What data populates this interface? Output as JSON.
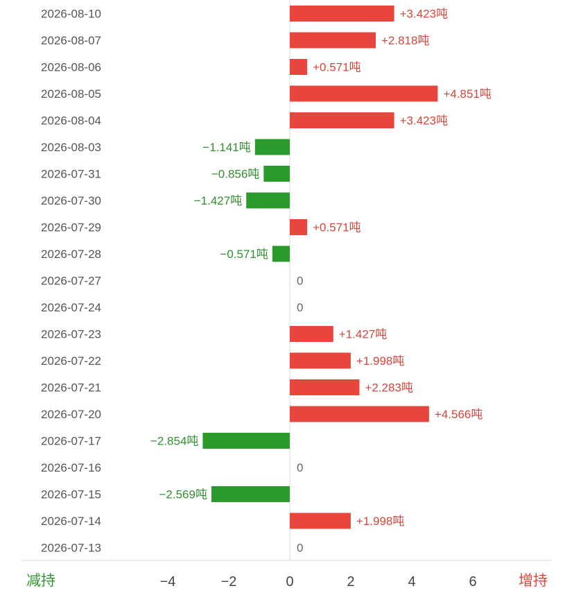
{
  "chart_data": {
    "type": "bar",
    "orientation": "horizontal",
    "categories": [
      "2026-08-10",
      "2026-08-07",
      "2026-08-06",
      "2026-08-05",
      "2026-08-04",
      "2026-08-03",
      "2026-07-31",
      "2026-07-30",
      "2026-07-29",
      "2026-07-28",
      "2026-07-27",
      "2026-07-24",
      "2026-07-23",
      "2026-07-22",
      "2026-07-21",
      "2026-07-20",
      "2026-07-17",
      "2026-07-16",
      "2026-07-15",
      "2026-07-14",
      "2026-07-13"
    ],
    "values": [
      3.423,
      2.818,
      0.571,
      4.851,
      3.423,
      -1.141,
      -0.856,
      -1.427,
      0.571,
      -0.571,
      0,
      0,
      1.427,
      1.998,
      2.283,
      4.566,
      -2.854,
      0,
      -2.569,
      1.998,
      0
    ],
    "value_labels": [
      "+3.423吨",
      "+2.818吨",
      "+0.571吨",
      "+4.851吨",
      "+3.423吨",
      "−1.141吨",
      "−0.856吨",
      "−1.427吨",
      "+0.571吨",
      "−0.571吨",
      "0",
      "0",
      "+1.427吨",
      "+1.998吨",
      "+2.283吨",
      "+4.566吨",
      "−2.854吨",
      "0",
      "−2.569吨",
      "+1.998吨",
      "0"
    ],
    "xlim": [
      -8.8,
      8.8
    ],
    "x_ticks": [
      -4,
      -2,
      0,
      2,
      4,
      6
    ],
    "x_tick_labels": [
      "−4",
      "−2",
      "0",
      "2",
      "4",
      "6"
    ],
    "grid": false,
    "legend": {
      "left": "减持",
      "right": "增持"
    },
    "colors": {
      "positive": "#e8453c",
      "negative": "#2a9a2a",
      "zero": "#666666"
    }
  }
}
